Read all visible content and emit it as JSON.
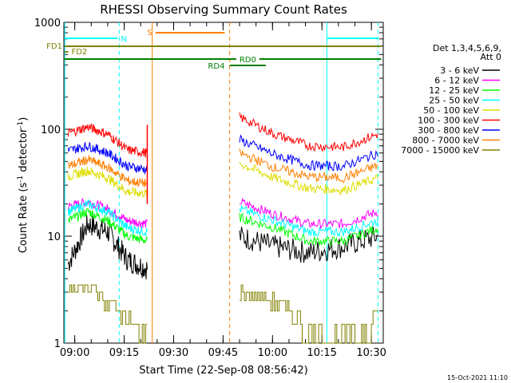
{
  "chart_data": {
    "type": "line",
    "title": "RHESSI Observing Summary Count Rates",
    "xlabel": "Start Time (22-Sep-08 08:56:42)",
    "ylabel": "Count Rate (s⁻¹ detector⁻¹)",
    "y_scale": "log",
    "ylim": [
      1,
      1000
    ],
    "xlim": [
      "08:56:42",
      "10:33:36"
    ],
    "x_ticks": [
      "09:00",
      "09:15",
      "09:30",
      "09:45",
      "10:00",
      "10:15",
      "10:30"
    ],
    "y_ticks": [
      "1",
      "10",
      "100",
      "1000"
    ],
    "date_stamp": "15-Oct-2021 11:10",
    "legend": {
      "position": "right",
      "header": [
        "Det 1,3,4,5,6,9,",
        "Att 0"
      ]
    },
    "series": [
      {
        "name": "3 - 6 keV",
        "color": "#000000",
        "values_pre": [
          5.5,
          13,
          11,
          6,
          5
        ],
        "values_post": [
          10,
          8,
          7,
          8,
          10
        ]
      },
      {
        "name": "6 - 12 keV",
        "color": "#ff00ff",
        "values_pre": [
          19,
          21,
          18,
          14,
          13
        ],
        "values_post": [
          21,
          16,
          13,
          13,
          17
        ]
      },
      {
        "name": "12 - 25 keV",
        "color": "#00ff00",
        "values_pre": [
          14,
          17,
          14,
          10,
          9
        ],
        "values_post": [
          15,
          12,
          9,
          9,
          12
        ]
      },
      {
        "name": "25 - 50 keV",
        "color": "#00ffff",
        "values_pre": [
          17,
          20,
          17,
          12,
          11
        ],
        "values_post": [
          18,
          14,
          11,
          11,
          14
        ]
      },
      {
        "name": "50 - 100 keV",
        "color": "#dddd00",
        "values_pre": [
          36,
          41,
          35,
          26,
          25
        ],
        "values_post": [
          48,
          35,
          28,
          27,
          35
        ]
      },
      {
        "name": "100 - 300 keV",
        "color": "#ff0000",
        "values_pre": [
          92,
          105,
          90,
          64,
          60
        ],
        "values_post": [
          130,
          90,
          70,
          68,
          90
        ]
      },
      {
        "name": "300 - 800 keV",
        "color": "#0000ff",
        "values_pre": [
          63,
          70,
          60,
          45,
          42
        ],
        "values_post": [
          80,
          58,
          46,
          45,
          60
        ]
      },
      {
        "name": "800 - 7000 keV",
        "color": "#ff7f00",
        "values_pre": [
          45,
          52,
          44,
          33,
          31
        ],
        "values_post": [
          60,
          44,
          36,
          35,
          46
        ]
      },
      {
        "name": "7000 - 15000 keV",
        "color": "#808000",
        "values_pre": [
          3,
          3.5,
          2.5,
          1.5,
          1
        ],
        "values_post": [
          3,
          2.5,
          1.3,
          1,
          1.8
        ]
      }
    ],
    "flag_bars": [
      {
        "label": "N",
        "color": "#00ffff"
      },
      {
        "label": "S",
        "color": "#ff7f00"
      },
      {
        "label": "FD1",
        "color": "#808000"
      },
      {
        "label": "FD2",
        "color": "#808000"
      },
      {
        "label": "RD0",
        "color": "#008000"
      },
      {
        "label": "RD4",
        "color": "#008000"
      }
    ],
    "grid": false
  }
}
